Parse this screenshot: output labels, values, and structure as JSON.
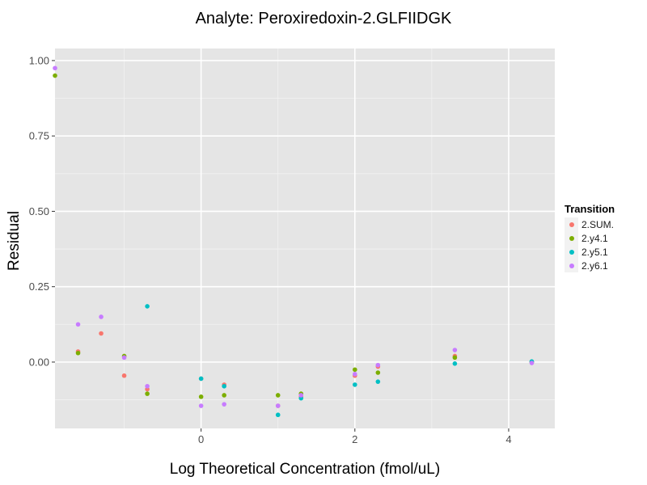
{
  "chart_data": {
    "type": "scatter",
    "title": "Analyte: Peroxiredoxin-2.GLFIIDGK",
    "xlabel": "Log Theoretical Concentration (fmol/uL)",
    "ylabel": "Residual",
    "xlim": [
      -1.9,
      4.6
    ],
    "ylim": [
      -0.22,
      1.04
    ],
    "x_ticks": [
      0,
      2,
      4
    ],
    "y_ticks": [
      0.0,
      0.25,
      0.5,
      0.75,
      1.0
    ],
    "y_tick_labels": [
      "0.00",
      "0.25",
      "0.50",
      "0.75",
      "1.00"
    ],
    "legend_title": "Transition",
    "legend_position": "right",
    "grid": true,
    "series": [
      {
        "name": "2.SUM.",
        "color": "#F8766D",
        "points": [
          {
            "x": -1.6,
            "y": 0.035
          },
          {
            "x": -1.3,
            "y": 0.095
          },
          {
            "x": -1.0,
            "y": -0.045
          },
          {
            "x": -0.7,
            "y": -0.09
          },
          {
            "x": 0.0,
            "y": -0.055
          },
          {
            "x": 0.3,
            "y": -0.075
          },
          {
            "x": 1.0,
            "y": -0.145
          },
          {
            "x": 1.3,
            "y": -0.115
          },
          {
            "x": 2.0,
            "y": -0.045
          },
          {
            "x": 2.3,
            "y": -0.015
          },
          {
            "x": 3.3,
            "y": 0.02
          },
          {
            "x": 4.3,
            "y": 0.0
          }
        ]
      },
      {
        "name": "2.y4.1",
        "color": "#7CAE00",
        "points": [
          {
            "x": -1.9,
            "y": 0.95
          },
          {
            "x": -1.6,
            "y": 0.03
          },
          {
            "x": -1.0,
            "y": 0.02
          },
          {
            "x": -0.7,
            "y": -0.105
          },
          {
            "x": 0.0,
            "y": -0.115
          },
          {
            "x": 0.3,
            "y": -0.11
          },
          {
            "x": 1.0,
            "y": -0.11
          },
          {
            "x": 1.3,
            "y": -0.105
          },
          {
            "x": 2.0,
            "y": -0.025
          },
          {
            "x": 2.3,
            "y": -0.035
          },
          {
            "x": 3.3,
            "y": 0.015
          },
          {
            "x": 4.3,
            "y": 0.0
          }
        ]
      },
      {
        "name": "2.y5.1",
        "color": "#00BFC4",
        "points": [
          {
            "x": -0.7,
            "y": 0.185
          },
          {
            "x": 0.0,
            "y": -0.055
          },
          {
            "x": 0.3,
            "y": -0.08
          },
          {
            "x": 1.0,
            "y": -0.175
          },
          {
            "x": 1.3,
            "y": -0.12
          },
          {
            "x": 2.0,
            "y": -0.075
          },
          {
            "x": 2.3,
            "y": -0.065
          },
          {
            "x": 3.3,
            "y": -0.005
          },
          {
            "x": 4.3,
            "y": 0.002
          }
        ]
      },
      {
        "name": "2.y6.1",
        "color": "#C77CFF",
        "points": [
          {
            "x": -1.9,
            "y": 0.975
          },
          {
            "x": -1.6,
            "y": 0.125
          },
          {
            "x": -1.3,
            "y": 0.15
          },
          {
            "x": -1.0,
            "y": 0.015
          },
          {
            "x": -0.7,
            "y": -0.08
          },
          {
            "x": 0.0,
            "y": -0.145
          },
          {
            "x": 0.3,
            "y": -0.14
          },
          {
            "x": 1.0,
            "y": -0.145
          },
          {
            "x": 1.3,
            "y": -0.11
          },
          {
            "x": 2.0,
            "y": -0.04
          },
          {
            "x": 2.3,
            "y": -0.01
          },
          {
            "x": 3.3,
            "y": 0.04
          },
          {
            "x": 4.3,
            "y": -0.003
          }
        ]
      }
    ]
  }
}
